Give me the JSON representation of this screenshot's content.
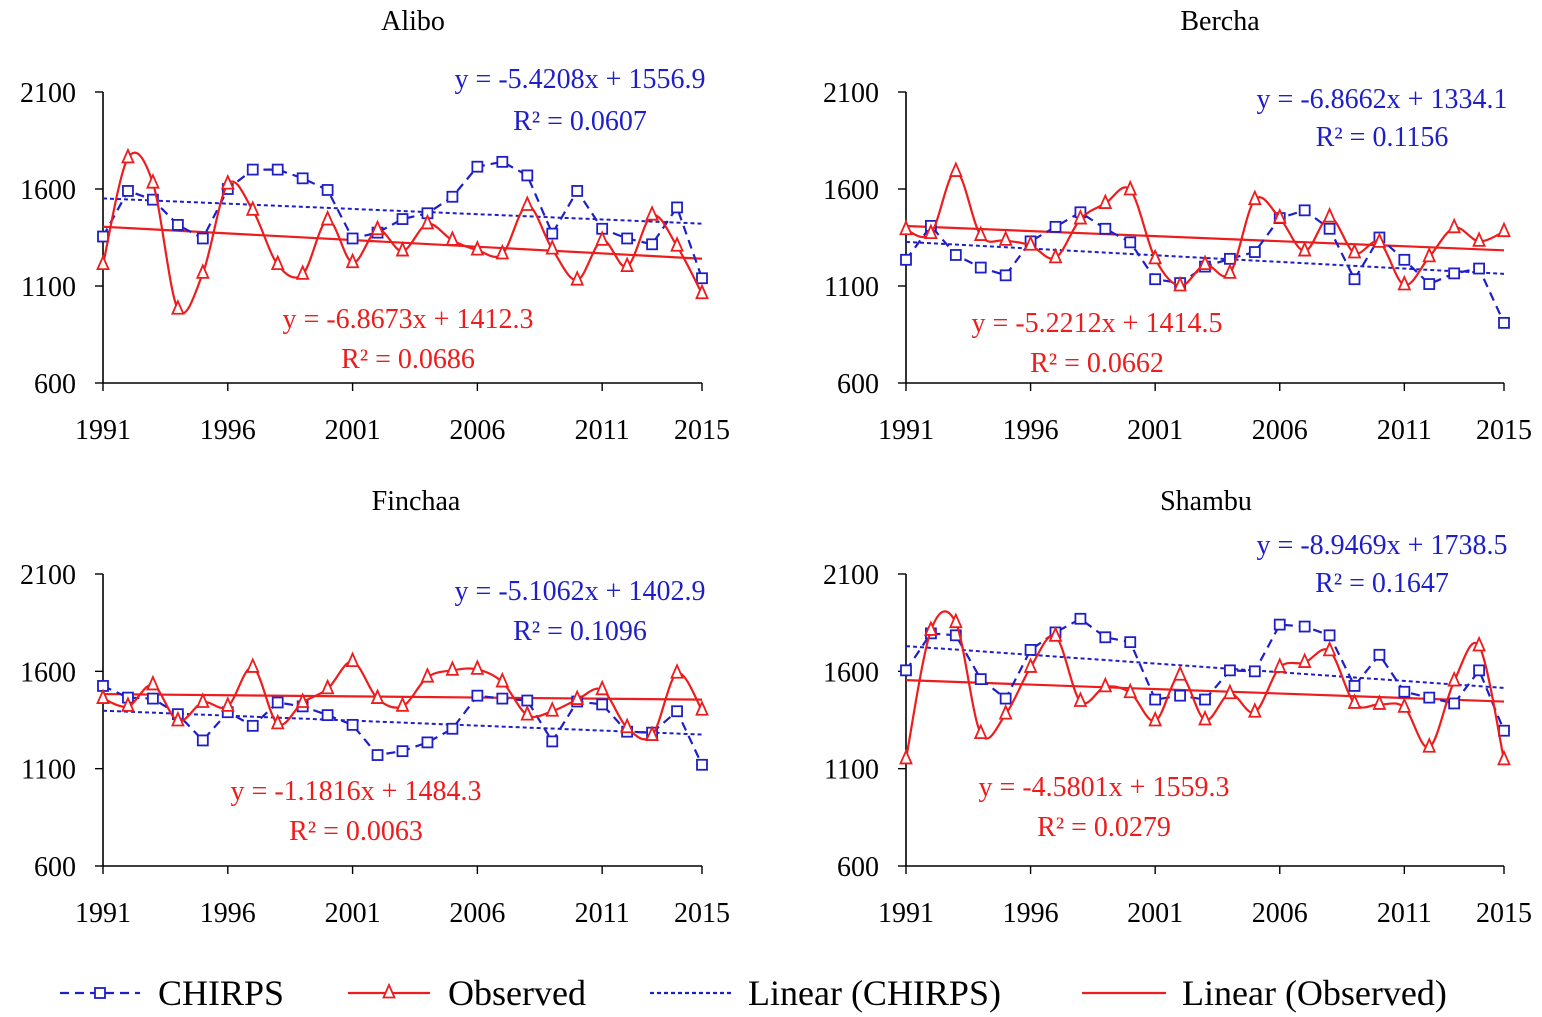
{
  "figure": {
    "colors": {
      "chirps": "#1f1fc8",
      "observed": "#ee1c1c",
      "axis": "#000000"
    }
  },
  "legend": {
    "items": [
      {
        "label": "CHIRPS",
        "series": "chirps",
        "style": "dashed-square"
      },
      {
        "label": "Observed",
        "series": "observed",
        "style": "solid-triangle"
      },
      {
        "label": "Linear (CHIRPS)",
        "series": "chirps",
        "style": "dotted-line"
      },
      {
        "label": "Linear (Observed)",
        "series": "observed",
        "style": "solid-line"
      }
    ]
  },
  "chart_data": [
    {
      "type": "line",
      "title": "Alibo",
      "x_ticks": [
        1991,
        1996,
        2001,
        2006,
        2011,
        2015
      ],
      "xlim": [
        1991,
        2015
      ],
      "y_ticks": [
        600,
        1100,
        1600,
        2100
      ],
      "ylim": [
        600,
        2100
      ],
      "grid": false,
      "x": [
        1991,
        1992,
        1993,
        1994,
        1995,
        1996,
        1997,
        1998,
        1999,
        2000,
        2001,
        2002,
        2003,
        2004,
        2005,
        2006,
        2007,
        2008,
        2009,
        2010,
        2011,
        2012,
        2013,
        2014,
        2015
      ],
      "series": [
        {
          "name": "CHIRPS",
          "values": [
            1355,
            1590,
            1545,
            1415,
            1345,
            1600,
            1700,
            1700,
            1655,
            1595,
            1345,
            1375,
            1445,
            1475,
            1560,
            1715,
            1740,
            1670,
            1370,
            1590,
            1395,
            1345,
            1315,
            1505,
            1140
          ]
        },
        {
          "name": "Observed",
          "values": [
            1210,
            1760,
            1630,
            980,
            1165,
            1625,
            1490,
            1210,
            1160,
            1440,
            1220,
            1390,
            1280,
            1420,
            1335,
            1285,
            1265,
            1515,
            1290,
            1130,
            1335,
            1200,
            1465,
            1305,
            1060
          ]
        }
      ],
      "trendlines": [
        {
          "series": "CHIRPS",
          "equation": "y = -5.4208x + 1556.9",
          "r2": "R² = 0.0607",
          "slope": -5.4208,
          "intercept": 1556.9
        },
        {
          "series": "Observed",
          "equation": "y = -6.8673x + 1412.3",
          "r2": "R² = 0.0686",
          "slope": -6.8673,
          "intercept": 1412.3
        }
      ]
    },
    {
      "type": "line",
      "title": "Bercha",
      "x_ticks": [
        1991,
        1996,
        2001,
        2006,
        2011,
        2015
      ],
      "xlim": [
        1991,
        2015
      ],
      "y_ticks": [
        600,
        1100,
        1600,
        2100
      ],
      "ylim": [
        600,
        2100
      ],
      "grid": false,
      "x": [
        1991,
        1992,
        1993,
        1994,
        1995,
        1996,
        1997,
        1998,
        1999,
        2000,
        2001,
        2002,
        2003,
        2004,
        2005,
        2006,
        2007,
        2008,
        2009,
        2010,
        2011,
        2012,
        2013,
        2014,
        2015
      ],
      "series": [
        {
          "name": "CHIRPS",
          "values": [
            1235,
            1410,
            1260,
            1195,
            1155,
            1330,
            1405,
            1480,
            1395,
            1325,
            1135,
            1115,
            1200,
            1240,
            1275,
            1450,
            1490,
            1395,
            1135,
            1350,
            1235,
            1110,
            1165,
            1190,
            910
          ]
        },
        {
          "name": "Observed",
          "values": [
            1390,
            1370,
            1690,
            1360,
            1335,
            1310,
            1245,
            1445,
            1525,
            1595,
            1240,
            1100,
            1210,
            1165,
            1545,
            1450,
            1280,
            1455,
            1270,
            1325,
            1105,
            1250,
            1400,
            1330,
            1380
          ]
        }
      ],
      "trendlines": [
        {
          "series": "CHIRPS",
          "equation": "y = -6.8662x + 1334.1",
          "r2": "R² = 0.1156",
          "slope": -6.8662,
          "intercept": 1334.1
        },
        {
          "series": "Observed",
          "equation": "y = -5.2212x + 1414.5",
          "r2": "R² = 0.0662",
          "slope": -5.2212,
          "intercept": 1414.5
        }
      ]
    },
    {
      "type": "line",
      "title": "Finchaa",
      "x_ticks": [
        1991,
        1996,
        2001,
        2006,
        2011,
        2015
      ],
      "xlim": [
        1991,
        2015
      ],
      "y_ticks": [
        600,
        1100,
        1600,
        2100
      ],
      "ylim": [
        600,
        2100
      ],
      "grid": false,
      "x": [
        1991,
        1992,
        1993,
        1994,
        1995,
        1996,
        1997,
        1998,
        1999,
        2000,
        2001,
        2002,
        2003,
        2004,
        2005,
        2006,
        2007,
        2008,
        2009,
        2010,
        2011,
        2012,
        2013,
        2014,
        2015
      ],
      "series": [
        {
          "name": "CHIRPS",
          "values": [
            1525,
            1465,
            1460,
            1380,
            1245,
            1390,
            1320,
            1440,
            1420,
            1375,
            1325,
            1170,
            1190,
            1235,
            1305,
            1475,
            1460,
            1450,
            1240,
            1445,
            1430,
            1290,
            1285,
            1395,
            1120
          ]
        },
        {
          "name": "Observed",
          "values": [
            1460,
            1420,
            1530,
            1345,
            1440,
            1420,
            1620,
            1330,
            1440,
            1510,
            1650,
            1460,
            1420,
            1570,
            1605,
            1610,
            1545,
            1375,
            1395,
            1455,
            1505,
            1310,
            1270,
            1590,
            1400
          ]
        }
      ],
      "trendlines": [
        {
          "series": "CHIRPS",
          "equation": "y = -5.1062x + 1402.9",
          "r2": "R² = 0.1096",
          "slope": -5.1062,
          "intercept": 1402.9
        },
        {
          "series": "Observed",
          "equation": "y = -1.1816x + 1484.3",
          "r2": "R² = 0.0063",
          "slope": -1.1816,
          "intercept": 1484.3
        }
      ]
    },
    {
      "type": "line",
      "title": "Shambu",
      "x_ticks": [
        1991,
        1996,
        2001,
        2006,
        2011,
        2015
      ],
      "xlim": [
        1991,
        2015
      ],
      "y_ticks": [
        600,
        1100,
        1600,
        2100
      ],
      "ylim": [
        600,
        2100
      ],
      "grid": false,
      "x": [
        1991,
        1992,
        1993,
        1994,
        1995,
        1996,
        1997,
        1998,
        1999,
        2000,
        2001,
        2002,
        2003,
        2004,
        2005,
        2006,
        2007,
        2008,
        2009,
        2010,
        2011,
        2012,
        2013,
        2014,
        2015
      ],
      "series": [
        {
          "name": "CHIRPS",
          "values": [
            1605,
            1795,
            1785,
            1560,
            1460,
            1710,
            1800,
            1870,
            1775,
            1750,
            1455,
            1475,
            1455,
            1605,
            1600,
            1840,
            1830,
            1785,
            1525,
            1685,
            1495,
            1465,
            1435,
            1605,
            1295
          ]
        },
        {
          "name": "Observed",
          "values": [
            1150,
            1810,
            1850,
            1280,
            1380,
            1620,
            1780,
            1445,
            1520,
            1490,
            1345,
            1580,
            1350,
            1485,
            1390,
            1620,
            1645,
            1705,
            1435,
            1430,
            1415,
            1210,
            1550,
            1730,
            1145
          ]
        }
      ],
      "trendlines": [
        {
          "series": "CHIRPS",
          "equation": "y = -8.9469x + 1738.5",
          "r2": "R² = 0.1647",
          "slope": -8.9469,
          "intercept": 1738.5
        },
        {
          "series": "Observed",
          "equation": "y = -4.5801x + 1559.3",
          "r2": "R² = 0.0279",
          "slope": -4.5801,
          "intercept": 1559.3
        }
      ]
    }
  ]
}
